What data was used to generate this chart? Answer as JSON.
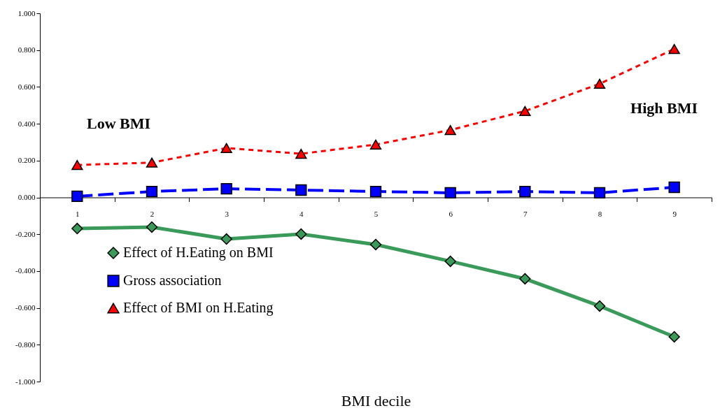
{
  "chart_data": {
    "type": "line",
    "xlabel": "BMI decile",
    "categories": [
      "1",
      "2",
      "3",
      "4",
      "5",
      "6",
      "7",
      "8",
      "9"
    ],
    "series": [
      {
        "name": "Effect of H.Eating on BMI",
        "color": "#3a9a5a",
        "marker": "diamond",
        "line_style": "solid",
        "values": [
          -0.169,
          -0.161,
          -0.226,
          -0.199,
          -0.256,
          -0.347,
          -0.442,
          -0.59,
          -0.757
        ]
      },
      {
        "name": "Gross association",
        "color": "#0000ff",
        "marker": "square",
        "line_style": "dashed",
        "values": [
          0.006,
          0.032,
          0.047,
          0.04,
          0.032,
          0.025,
          0.032,
          0.025,
          0.055
        ]
      },
      {
        "name": "Effect of BMI on H.Eating",
        "color": "#ff0000",
        "marker": "triangle",
        "line_style": "dotted",
        "values": [
          0.176,
          0.189,
          0.268,
          0.237,
          0.287,
          0.366,
          0.469,
          0.617,
          0.806
        ]
      }
    ],
    "ylim": [
      -1,
      1
    ],
    "yticks": [
      {
        "value": -1,
        "label": "-1.000"
      },
      {
        "value": -0.8,
        "label": "-0.800"
      },
      {
        "value": -0.6,
        "label": "-0.600"
      },
      {
        "value": -0.4,
        "label": "-0.400"
      },
      {
        "value": -0.2,
        "label": "-0.200"
      },
      {
        "value": 0,
        "label": "0.000"
      },
      {
        "value": 0.2,
        "label": "0.200"
      },
      {
        "value": 0.4,
        "label": "0.400"
      },
      {
        "value": 0.6,
        "label": "0.600"
      },
      {
        "value": 0.8,
        "label": "0.800"
      },
      {
        "value": 1,
        "label": "1.000"
      }
    ],
    "annotations": [
      "Low BMI",
      "High BMI"
    ],
    "grid": false,
    "legend": "bottom left"
  }
}
